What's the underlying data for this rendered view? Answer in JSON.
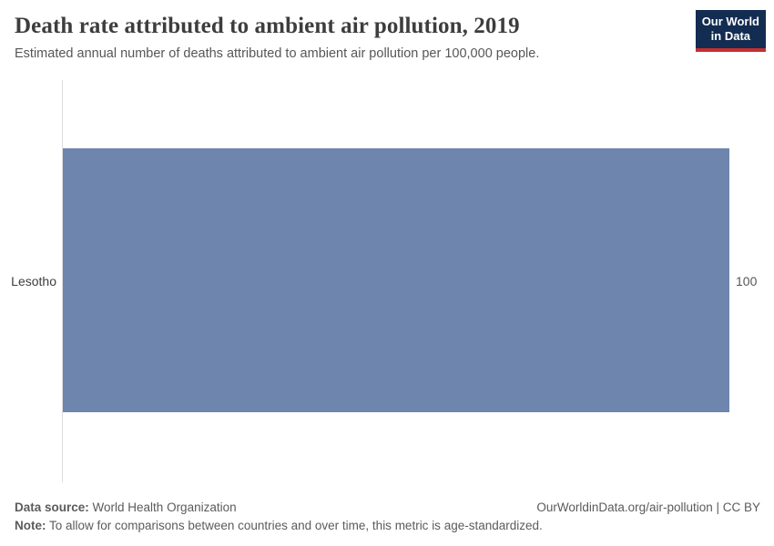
{
  "header": {
    "title": "Death rate attributed to ambient air pollution, 2019",
    "subtitle": "Estimated annual number of deaths attributed to ambient air pollution per 100,000 people.",
    "logo_line1": "Our World",
    "logo_line2": "in Data"
  },
  "chart_data": {
    "type": "bar",
    "orientation": "horizontal",
    "title": "Death rate attributed to ambient air pollution, 2019",
    "subtitle": "Estimated annual number of deaths attributed to ambient air pollution per 100,000 people.",
    "categories": [
      "Lesotho"
    ],
    "values": [
      100
    ],
    "value_labels": [
      "100"
    ],
    "xlabel": "",
    "ylabel": "",
    "xlim": [
      0,
      100
    ],
    "grid": false,
    "legend_position": "none",
    "bar_color": "#6e86ad",
    "axis_line_color": "#dedede"
  },
  "footer": {
    "data_source_label": "Data source:",
    "data_source_value": " World Health Organization",
    "note_label": "Note:",
    "note_value": " To allow for comparisons between countries and over time, this metric is age-standardized.",
    "attribution": "OurWorldinData.org/air-pollution | CC BY"
  },
  "colors": {
    "bar": "#6e86ad",
    "axis_line": "#dedede",
    "logo_background": "#132c51",
    "logo_accent": "#c42f30",
    "title_text": "#3d3d3d",
    "muted_text": "#5b5b5b"
  }
}
